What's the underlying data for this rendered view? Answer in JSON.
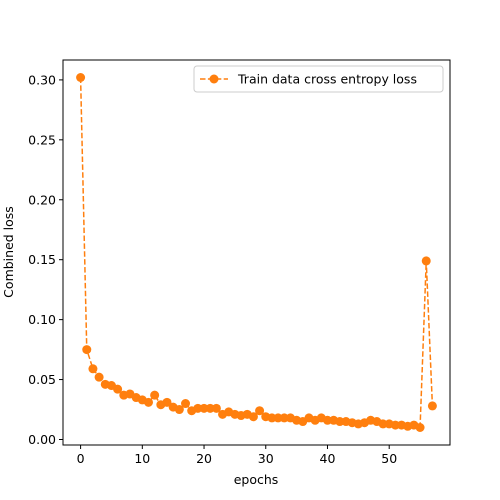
{
  "chart_data": {
    "type": "line",
    "title": "",
    "xlabel": "epochs",
    "ylabel": "Combined loss",
    "xlim": [
      -2.85,
      59.85
    ],
    "ylim": [
      -0.0046,
      0.3166
    ],
    "xticks": [
      0,
      10,
      20,
      30,
      40,
      50
    ],
    "yticks": [
      0.0,
      0.05,
      0.1,
      0.15,
      0.2,
      0.25,
      0.3
    ],
    "ytick_labels": [
      "0.00",
      "0.05",
      "0.10",
      "0.15",
      "0.20",
      "0.25",
      "0.30"
    ],
    "grid": false,
    "legend_position": "top-right",
    "series": [
      {
        "name": "Train data cross entropy loss",
        "color": "#ff7f0e",
        "line_style": "dashed",
        "marker": "circle",
        "x": [
          0,
          1,
          2,
          3,
          4,
          5,
          6,
          7,
          8,
          9,
          10,
          11,
          12,
          13,
          14,
          15,
          16,
          17,
          18,
          19,
          20,
          21,
          22,
          23,
          24,
          25,
          26,
          27,
          28,
          29,
          30,
          31,
          32,
          33,
          34,
          35,
          36,
          37,
          38,
          39,
          40,
          41,
          42,
          43,
          44,
          45,
          46,
          47,
          48,
          49,
          50,
          51,
          52,
          53,
          54,
          55,
          56,
          57
        ],
        "y": [
          0.302,
          0.075,
          0.059,
          0.052,
          0.046,
          0.045,
          0.042,
          0.037,
          0.038,
          0.035,
          0.033,
          0.031,
          0.037,
          0.029,
          0.031,
          0.027,
          0.025,
          0.03,
          0.024,
          0.026,
          0.026,
          0.026,
          0.026,
          0.021,
          0.023,
          0.021,
          0.02,
          0.021,
          0.019,
          0.024,
          0.019,
          0.018,
          0.018,
          0.018,
          0.018,
          0.016,
          0.015,
          0.018,
          0.016,
          0.018,
          0.016,
          0.016,
          0.015,
          0.015,
          0.014,
          0.013,
          0.014,
          0.016,
          0.015,
          0.013,
          0.013,
          0.012,
          0.012,
          0.011,
          0.012,
          0.01,
          0.149,
          0.028
        ]
      }
    ]
  }
}
